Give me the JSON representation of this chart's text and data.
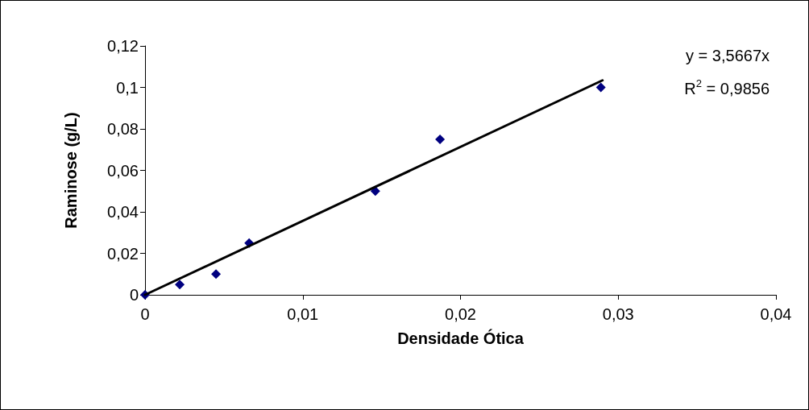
{
  "chart_data": {
    "type": "scatter",
    "xlabel": "Densidade Ótica",
    "ylabel": "Raminose (g/L)",
    "annotations": [
      "y = 3,5667x",
      "R$^{2}$ = 0,9856"
    ],
    "marker": "diamond",
    "grid": false,
    "xlim": [
      0,
      0.04
    ],
    "xticks": [
      0,
      {
        "value": 0.01,
        "label": "0,01"
      },
      {
        "value": 0.02,
        "label": "0,02"
      },
      {
        "value": 0.03,
        "label": "0,03"
      },
      {
        "value": 0.04,
        "label": "0,04"
      }
    ],
    "ylim": [
      0,
      0.12
    ],
    "yticks": [
      0,
      {
        "value": 0.02,
        "label": "0,02"
      },
      {
        "value": 0.04,
        "label": "0,04"
      },
      {
        "value": 0.06,
        "label": "0,06"
      },
      {
        "value": 0.08,
        "label": "0,08"
      },
      {
        "value": 0.1,
        "label": "0,1"
      },
      {
        "value": 0.12,
        "label": "0,12"
      }
    ],
    "series": [
      {
        "color": "#000080",
        "x": [
          0,
          0.0022,
          0.0045,
          0.0066,
          0.0146,
          0.0187,
          0.0289
        ],
        "values": [
          0,
          0.005,
          0.01,
          0.025,
          0.05,
          0.075,
          0.1
        ]
      },
      {
        "type": "line",
        "color": "#000000",
        "marker": "none",
        "line_style": "solid",
        "x": [
          0,
          0.029
        ],
        "values": [
          0,
          0.1034
        ]
      }
    ]
  }
}
